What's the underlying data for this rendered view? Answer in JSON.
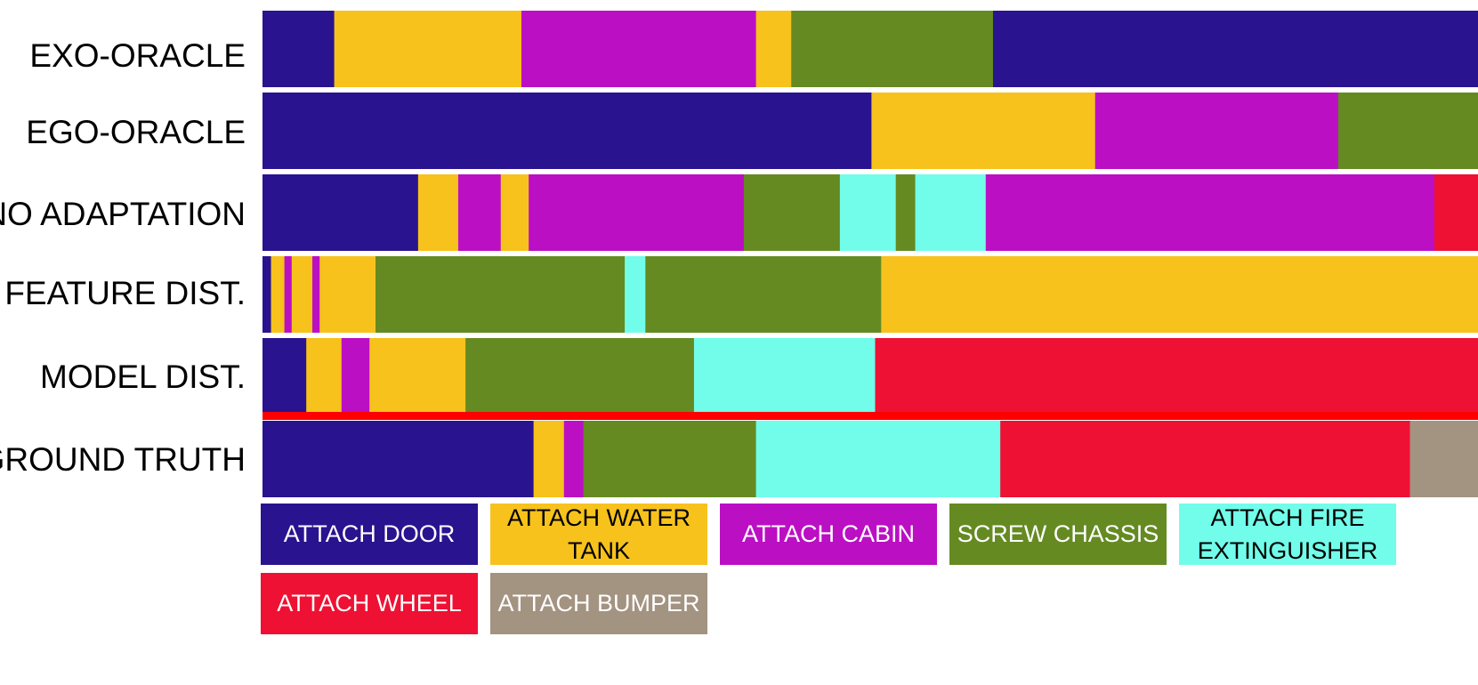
{
  "chart_data": {
    "type": "segmentation_timeline",
    "x_range": [
      0,
      100
    ],
    "grid": false,
    "legend_placement": "bottom",
    "colors": {
      "ATTACH DOOR": "#29138f",
      "ATTACH WATER TANK": "#f7c21c",
      "ATTACH CABIN": "#bb0fc4",
      "SCREW CHASSIS": "#658a22",
      "ATTACH FIRE EXTINGUISHER": "#72fdea",
      "ATTACH WHEEL": "#ee1133",
      "ATTACH BUMPER": "#a39381"
    },
    "rows": [
      {
        "label": "EXO-ORACLE",
        "segments": [
          {
            "action": "ATTACH DOOR",
            "start": 0,
            "end": 5.9
          },
          {
            "action": "ATTACH WATER TANK",
            "start": 5.9,
            "end": 21.3
          },
          {
            "action": "ATTACH CABIN",
            "start": 21.3,
            "end": 40.6
          },
          {
            "action": "ATTACH WATER TANK",
            "start": 40.6,
            "end": 43.5
          },
          {
            "action": "SCREW CHASSIS",
            "start": 43.5,
            "end": 60.1
          },
          {
            "action": "ATTACH DOOR",
            "start": 60.1,
            "end": 100
          }
        ]
      },
      {
        "label": "EGO-ORACLE",
        "segments": [
          {
            "action": "ATTACH DOOR",
            "start": 0,
            "end": 50.1
          },
          {
            "action": "ATTACH WATER TANK",
            "start": 50.1,
            "end": 68.5
          },
          {
            "action": "ATTACH CABIN",
            "start": 68.5,
            "end": 88.5
          },
          {
            "action": "SCREW CHASSIS",
            "start": 88.5,
            "end": 100
          }
        ]
      },
      {
        "label": "NO ADAPTATION",
        "segments": [
          {
            "action": "ATTACH DOOR",
            "start": 0,
            "end": 12.8
          },
          {
            "action": "ATTACH WATER TANK",
            "start": 12.8,
            "end": 16.1
          },
          {
            "action": "ATTACH CABIN",
            "start": 16.1,
            "end": 19.6
          },
          {
            "action": "ATTACH WATER TANK",
            "start": 19.6,
            "end": 21.9
          },
          {
            "action": "ATTACH CABIN",
            "start": 21.9,
            "end": 39.6
          },
          {
            "action": "SCREW CHASSIS",
            "start": 39.6,
            "end": 47.5
          },
          {
            "action": "ATTACH FIRE EXTINGUISHER",
            "start": 47.5,
            "end": 52.1
          },
          {
            "action": "SCREW CHASSIS",
            "start": 52.1,
            "end": 53.7
          },
          {
            "action": "ATTACH FIRE EXTINGUISHER",
            "start": 53.7,
            "end": 59.5
          },
          {
            "action": "ATTACH CABIN",
            "start": 59.5,
            "end": 96.4
          },
          {
            "action": "ATTACH WHEEL",
            "start": 96.4,
            "end": 100
          }
        ]
      },
      {
        "label": "FEATURE DIST.",
        "segments": [
          {
            "action": "ATTACH DOOR",
            "start": 0,
            "end": 0.7
          },
          {
            "action": "ATTACH WATER TANK",
            "start": 0.7,
            "end": 1.8
          },
          {
            "action": "ATTACH CABIN",
            "start": 1.8,
            "end": 2.4
          },
          {
            "action": "ATTACH WATER TANK",
            "start": 2.4,
            "end": 4.1
          },
          {
            "action": "ATTACH CABIN",
            "start": 4.1,
            "end": 4.7
          },
          {
            "action": "ATTACH WATER TANK",
            "start": 4.7,
            "end": 9.3
          },
          {
            "action": "SCREW CHASSIS",
            "start": 9.3,
            "end": 29.8
          },
          {
            "action": "ATTACH FIRE EXTINGUISHER",
            "start": 29.8,
            "end": 31.5
          },
          {
            "action": "SCREW CHASSIS",
            "start": 31.5,
            "end": 50.9
          },
          {
            "action": "ATTACH WATER TANK",
            "start": 50.9,
            "end": 100
          }
        ]
      },
      {
        "label": "MODEL DIST.",
        "segments": [
          {
            "action": "ATTACH DOOR",
            "start": 0,
            "end": 3.6
          },
          {
            "action": "ATTACH WATER TANK",
            "start": 3.6,
            "end": 6.5
          },
          {
            "action": "ATTACH CABIN",
            "start": 6.5,
            "end": 8.8
          },
          {
            "action": "ATTACH WATER TANK",
            "start": 8.8,
            "end": 16.7
          },
          {
            "action": "SCREW CHASSIS",
            "start": 16.7,
            "end": 35.5
          },
          {
            "action": "ATTACH FIRE EXTINGUISHER",
            "start": 35.5,
            "end": 50.4
          },
          {
            "action": "ATTACH WHEEL",
            "start": 50.4,
            "end": 100
          }
        ]
      },
      {
        "label": "GROUND TRUTH",
        "segments": [
          {
            "action": "ATTACH DOOR",
            "start": 0,
            "end": 22.3
          },
          {
            "action": "ATTACH WATER TANK",
            "start": 22.3,
            "end": 24.8
          },
          {
            "action": "ATTACH CABIN",
            "start": 24.8,
            "end": 26.4
          },
          {
            "action": "SCREW CHASSIS",
            "start": 26.4,
            "end": 40.6
          },
          {
            "action": "ATTACH FIRE EXTINGUISHER",
            "start": 40.6,
            "end": 60.7
          },
          {
            "action": "ATTACH WHEEL",
            "start": 60.7,
            "end": 94.4
          },
          {
            "action": "ATTACH BUMPER",
            "start": 94.4,
            "end": 100
          }
        ]
      }
    ],
    "separator_color": "#ff0000",
    "legend": [
      {
        "label": "ATTACH DOOR",
        "color": "#29138f",
        "text_color": "#ffffff"
      },
      {
        "label": "ATTACH WATER TANK",
        "color": "#f7c21c",
        "text_color": "#000000"
      },
      {
        "label": "ATTACH CABIN",
        "color": "#bb0fc4",
        "text_color": "#ffffff"
      },
      {
        "label": "SCREW CHASSIS",
        "color": "#658a22",
        "text_color": "#ffffff"
      },
      {
        "label": "ATTACH FIRE EXTINGUISHER",
        "color": "#72fdea",
        "text_color": "#000000"
      },
      {
        "label": "ATTACH WHEEL",
        "color": "#ee1133",
        "text_color": "#ffffff"
      },
      {
        "label": "ATTACH BUMPER",
        "color": "#a39381",
        "text_color": "#ffffff"
      }
    ]
  }
}
